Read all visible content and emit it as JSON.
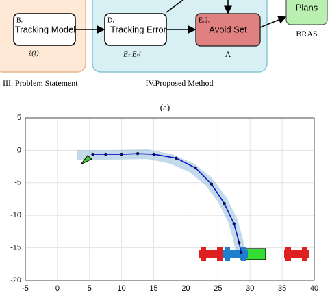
{
  "diagram": {
    "model_box": {
      "letter": "B.",
      "label": "Tracking Model",
      "output": "ẑ(t)"
    },
    "error_box": {
      "letter": "D.",
      "label": "Tracking Error",
      "output": "Ēₜ Eₜᶠ"
    },
    "avoid_box": {
      "letter": "E.2.",
      "label": "Avoid Set",
      "output": "Λ"
    },
    "plans_box": {
      "label": "Plans",
      "output": "BRAS"
    },
    "captions": [
      "III. Problem Statement",
      "IV.Proposed Method"
    ],
    "subfigure": "(a)"
  },
  "chart_data": {
    "type": "line",
    "x": [
      5.5,
      7.5,
      10,
      12.5,
      15,
      18.5,
      21.5,
      24,
      26,
      27.5,
      28.3,
      28.6
    ],
    "series": [
      {
        "color": "#1010c8",
        "values": [
          -0.6,
          -0.6,
          -0.6,
          -0.5,
          -0.6,
          -1.2,
          -2.7,
          -5.2,
          -8.2,
          -11.3,
          -14.2,
          -15.7
        ]
      }
    ],
    "xlim": [
      -5,
      40
    ],
    "xticks": [
      -5,
      0,
      5,
      10,
      15,
      20,
      25,
      30,
      35,
      40
    ],
    "ylim": [
      -20,
      5
    ],
    "yticks": [
      -20,
      -15,
      -10,
      -5,
      0,
      5
    ],
    "grid": true
  }
}
